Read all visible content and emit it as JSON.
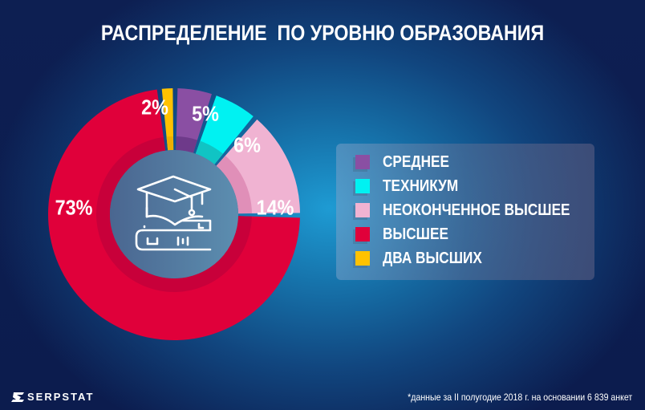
{
  "title": "РАСПРЕДЕЛЕНИЕ  ПО УРОВНЮ ОБРАЗОВАНИЯ",
  "center_icon": "graduation-cap-on-book-icon",
  "labels": {
    "srednee": "5%",
    "tekhnikum": "6%",
    "neokonchennoe": "14%",
    "vysshee": "73%",
    "dva_vysshikh": "2%"
  },
  "legend": {
    "items": [
      {
        "label": "СРЕДНЕЕ",
        "color": "#8a4fa3"
      },
      {
        "label": "ТЕХНИКУМ",
        "color": "#00f2f2"
      },
      {
        "label": "НЕОКОНЧЕННОЕ ВЫСШЕЕ",
        "color": "#f0b3d2"
      },
      {
        "label": "ВЫСШЕЕ",
        "color": "#e0003a"
      },
      {
        "label": "ДВА ВЫСШИХ",
        "color": "#ffc200"
      }
    ]
  },
  "footer": {
    "logo": "SERPSTAT",
    "note": "*данные за II полугодие 2018 г. на основании 6 839 анкет"
  },
  "chart_data": {
    "type": "pie",
    "title": "РАСПРЕДЕЛЕНИЕ  ПО УРОВНЮ ОБРАЗОВАНИЯ",
    "categories": [
      "СРЕДНЕЕ",
      "ТЕХНИКУМ",
      "НЕОКОНЧЕННОЕ ВЫСШЕЕ",
      "ВЫСШЕЕ",
      "ДВА ВЫСШИХ"
    ],
    "values": [
      5,
      6,
      14,
      73,
      2
    ],
    "unit": "%",
    "colors": [
      "#8a4fa3",
      "#00f2f2",
      "#f0b3d2",
      "#e0003a",
      "#ffc200"
    ],
    "style": "donut",
    "legend_position": "right",
    "annotation": "*данные за II полугодие 2018 г. на основании 6 839 анкет"
  }
}
